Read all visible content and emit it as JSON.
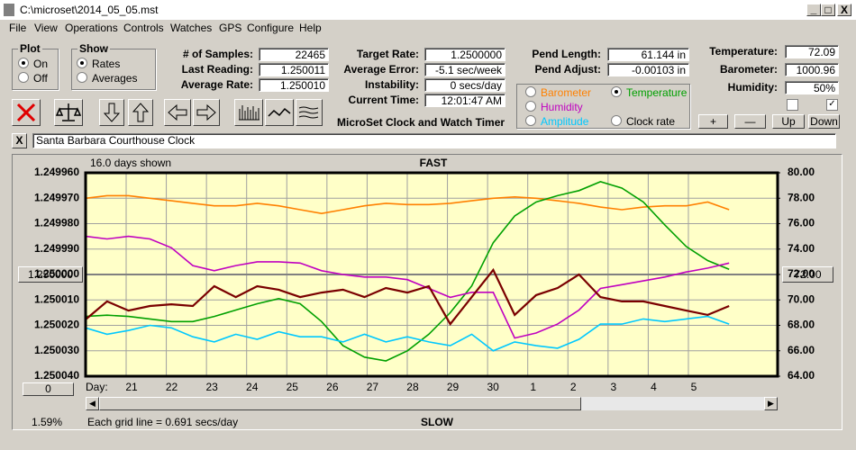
{
  "window": {
    "title": "C:\\microset\\2014_05_05.mst"
  },
  "menu": [
    "File",
    "View",
    "Operations",
    "Controls",
    "Watches",
    "GPS",
    "Configure",
    "Help"
  ],
  "plot_group": {
    "title": "Plot",
    "options": [
      "On",
      "Off"
    ],
    "selected": 0
  },
  "show_group": {
    "title": "Show",
    "options": [
      "Rates",
      "Averages"
    ],
    "selected": 0
  },
  "readings": [
    {
      "label": "# of Samples:",
      "value": "22465"
    },
    {
      "label": "Last Reading:",
      "value": "1.250011"
    },
    {
      "label": "Average Rate:",
      "value": "1.250010"
    }
  ],
  "timing": [
    {
      "label": "Target Rate:",
      "value": "1.2500000"
    },
    {
      "label": "Average Error:",
      "value": "-5.1 sec/week"
    },
    {
      "label": "Instability:",
      "value": "0 secs/day"
    },
    {
      "label": "Current Time:",
      "value": "12:01:47 AM"
    }
  ],
  "app_name": "MicroSet Clock and Watch Timer",
  "pendulum": [
    {
      "label": "Pend Length:",
      "value": "61.144 in"
    },
    {
      "label": "Pend Adjust:",
      "value": "-0.00103 in"
    }
  ],
  "environment": [
    {
      "label": "Temperature:",
      "value": "72.09"
    },
    {
      "label": "Barometer:",
      "value": "1000.96"
    },
    {
      "label": "Humidity:",
      "value": "50%"
    }
  ],
  "checkboxes": [
    false,
    true
  ],
  "graph_buttons": [
    "+",
    "—",
    "Up",
    "Down"
  ],
  "watch": {
    "close": "X",
    "name": "Santa Barbara Courthouse Clock"
  },
  "chart_data": {
    "type": "line",
    "title": "FAST",
    "footer": "SLOW",
    "span_label": "16.0 days shown",
    "grid_note": "Each grid line = 0.691 secs/day",
    "scroll_percent": "1.59%",
    "offset": "0",
    "x_label": "Day:",
    "day_labels": [
      "21",
      "22",
      "23",
      "24",
      "25",
      "26",
      "27",
      "28",
      "29",
      "30",
      "1",
      "2",
      "3",
      "4",
      "5"
    ],
    "grid": true,
    "selected_series": 1,
    "ylim": [
      1.25004,
      1.24996
    ],
    "yticks": [
      {
        "value": 1.24996,
        "label": "1.249960"
      },
      {
        "value": 1.24997,
        "label": "1.249970"
      },
      {
        "value": 1.24998,
        "label": "1.249980"
      },
      {
        "value": 1.24999,
        "label": "1.249990"
      },
      {
        "value": 1.25,
        "label": "1.250000"
      },
      {
        "value": 1.25001,
        "label": "1.250010"
      },
      {
        "value": 1.25002,
        "label": "1.250020"
      },
      {
        "value": 1.25003,
        "label": "1.250030"
      },
      {
        "value": 1.25004,
        "label": "1.250040"
      }
    ],
    "y2lim": [
      64,
      80
    ],
    "y2ticks": [
      {
        "value": 80,
        "label": "80.00"
      },
      {
        "value": 78,
        "label": "78.00"
      },
      {
        "value": 76,
        "label": "76.00"
      },
      {
        "value": 74,
        "label": "74.00"
      },
      {
        "value": 72,
        "label": "72.00"
      },
      {
        "value": 70,
        "label": "70.00"
      },
      {
        "value": 68,
        "label": "68.00"
      },
      {
        "value": 66,
        "label": "66.00"
      },
      {
        "value": 64,
        "label": "64.00"
      }
    ],
    "reference": {
      "value": 1.25,
      "label": "1.250000"
    },
    "reference2": {
      "value": 72,
      "label": "72.00"
    },
    "series": [
      {
        "name": "Barometer",
        "color": "#ff8000",
        "axis": "y2",
        "values": [
          78.0,
          78.2,
          78.2,
          78.0,
          77.8,
          77.6,
          77.4,
          77.4,
          77.6,
          77.4,
          77.1,
          76.8,
          77.1,
          77.4,
          77.6,
          77.5,
          77.5,
          77.6,
          77.8,
          78.0,
          78.1,
          78.0,
          77.8,
          77.6,
          77.3,
          77.1,
          77.3,
          77.4,
          77.4,
          77.7,
          77.1
        ]
      },
      {
        "name": "Temperature",
        "color": "#00a000",
        "axis": "y2",
        "values": [
          68.7,
          68.8,
          68.7,
          68.5,
          68.3,
          68.3,
          68.7,
          69.2,
          69.7,
          70.1,
          69.7,
          68.3,
          66.4,
          65.5,
          65.2,
          66.0,
          67.3,
          69.0,
          71.1,
          74.5,
          76.6,
          77.7,
          78.2,
          78.6,
          79.3,
          78.8,
          77.7,
          75.9,
          74.2,
          73.1,
          72.4
        ]
      },
      {
        "name": "Humidity",
        "color": "#c000c0",
        "axis": "y2",
        "values": [
          75.0,
          74.8,
          75.0,
          74.8,
          74.1,
          72.7,
          72.3,
          72.7,
          73.0,
          73.0,
          72.9,
          72.3,
          72.0,
          71.8,
          71.8,
          71.6,
          70.9,
          70.2,
          70.6,
          70.6,
          67.0,
          67.4,
          68.1,
          69.2,
          70.9,
          71.2,
          71.5,
          71.8,
          72.2,
          72.5,
          72.9
        ]
      },
      {
        "name": "Amplitude",
        "color": "#00c8ff",
        "axis": "y2",
        "values": [
          67.8,
          67.3,
          67.6,
          68.0,
          67.8,
          67.1,
          66.7,
          67.3,
          66.9,
          67.5,
          67.1,
          67.1,
          66.7,
          67.3,
          66.7,
          67.1,
          66.7,
          66.4,
          67.3,
          66.0,
          66.7,
          66.4,
          66.2,
          66.9,
          68.1,
          68.1,
          68.5,
          68.3,
          68.5,
          68.7,
          68.1
        ]
      },
      {
        "name": "Clock rate",
        "color": "#7a0000",
        "axis": "y",
        "values": [
          1.2500177,
          1.2500106,
          1.2500142,
          1.2500124,
          1.2500117,
          1.2500124,
          1.2500046,
          1.2500089,
          1.2500046,
          1.250006,
          1.2500089,
          1.2500071,
          1.250006,
          1.2500089,
          1.2500053,
          1.2500071,
          1.2500046,
          1.2500195,
          1.2500089,
          1.2499982,
          1.2500159,
          1.2500081,
          1.2500053,
          1.25,
          1.2500089,
          1.2500106,
          1.2500106,
          1.2500124,
          1.2500142,
          1.2500159,
          1.2500124
        ]
      }
    ]
  }
}
